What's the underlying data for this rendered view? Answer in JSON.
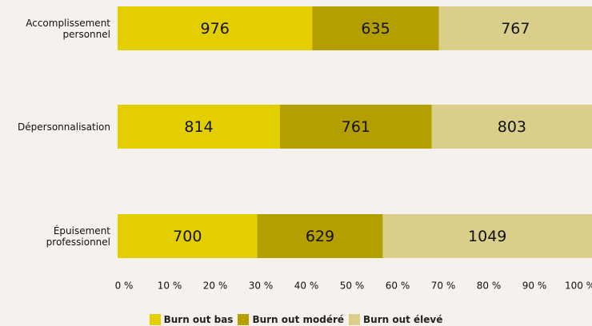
{
  "chart_data": {
    "type": "bar",
    "orientation": "horizontal",
    "stacking": "percent",
    "categories": [
      "Accomplissement personnel",
      "Dépersonnalisation",
      "Épuisement professionnel"
    ],
    "series": [
      {
        "name": "Burn out bas",
        "color": "#e3cf00",
        "values": [
          976,
          814,
          700
        ]
      },
      {
        "name": "Burn out modéré",
        "color": "#b3a000",
        "values": [
          635,
          761,
          629
        ]
      },
      {
        "name": "Burn out élevé",
        "color": "#d9ce8a",
        "values": [
          767,
          803,
          1049
        ]
      }
    ],
    "xlim": [
      0,
      100
    ],
    "xticks": [
      {
        "value": 0,
        "label": "0 %"
      },
      {
        "value": 10,
        "label": "10 %"
      },
      {
        "value": 20,
        "label": "20 %"
      },
      {
        "value": 30,
        "label": "30 %"
      },
      {
        "value": 40,
        "label": "40 %"
      },
      {
        "value": 50,
        "label": "50 %"
      },
      {
        "value": 60,
        "label": "60 %"
      },
      {
        "value": 70,
        "label": "70 %"
      },
      {
        "value": 80,
        "label": "80 %"
      },
      {
        "value": 90,
        "label": "90 %"
      },
      {
        "value": 100,
        "label": "100 %"
      }
    ],
    "grid": false
  }
}
